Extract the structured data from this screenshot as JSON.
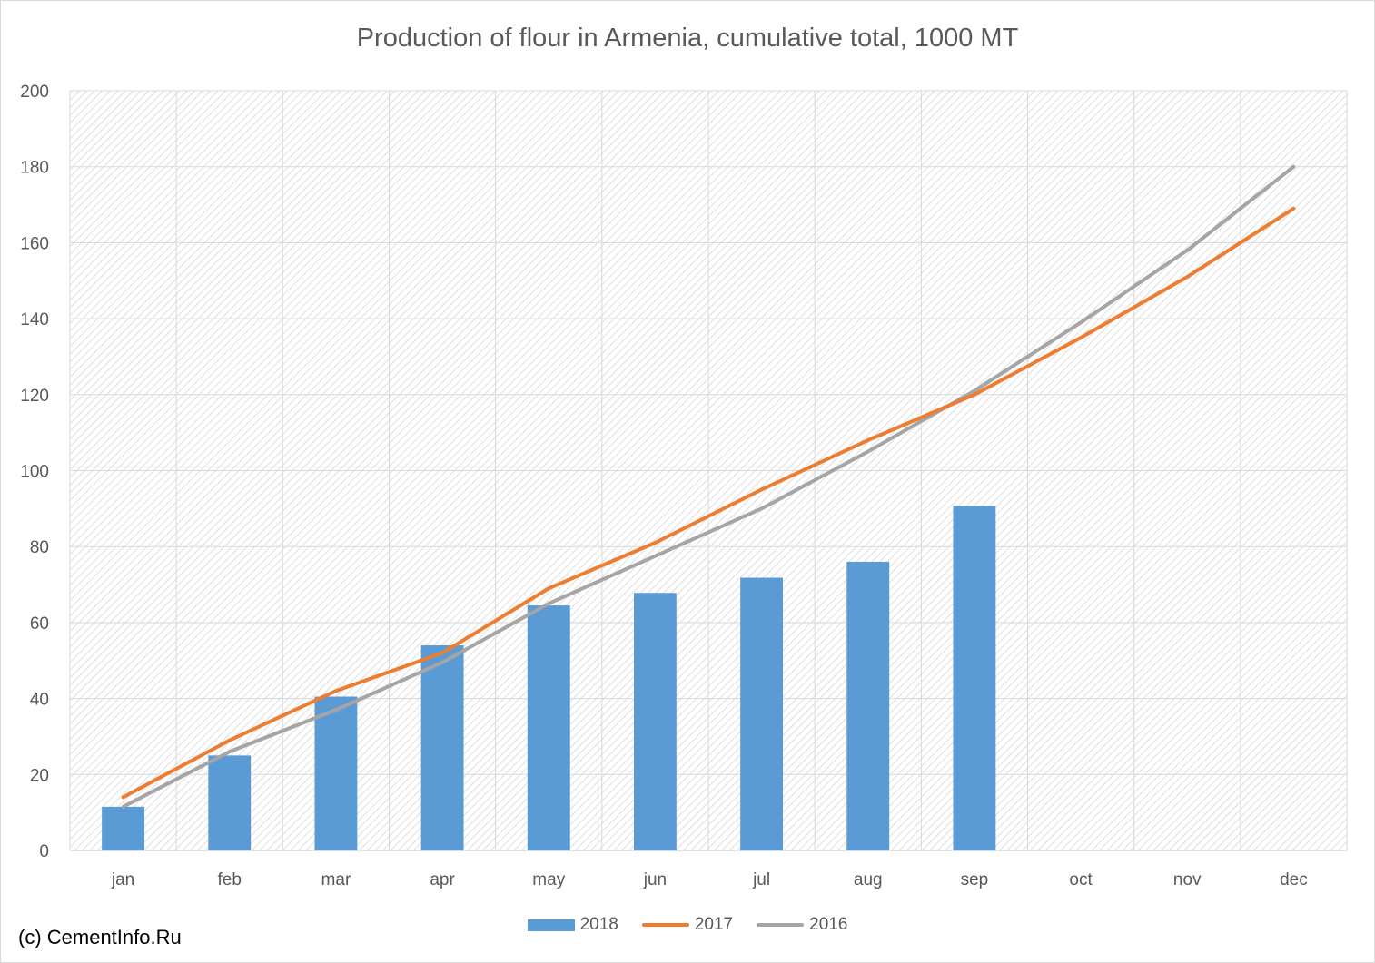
{
  "title": "Production of flour in Armenia, cumulative total, 1000 MT",
  "copyright": "(c) CementInfo.Ru",
  "chart_data": {
    "type": "bar",
    "title": "Production of flour in Armenia, cumulative total, 1000 MT",
    "xlabel": "",
    "ylabel": "",
    "ylim": [
      0,
      200
    ],
    "yticks": [
      0,
      20,
      40,
      60,
      80,
      100,
      120,
      140,
      160,
      180,
      200
    ],
    "grid": true,
    "legend_position": "bottom",
    "categories": [
      "jan",
      "feb",
      "mar",
      "apr",
      "may",
      "jun",
      "jul",
      "aug",
      "sep",
      "oct",
      "nov",
      "dec"
    ],
    "series": [
      {
        "name": "2018",
        "type": "bar",
        "color": "#5b9bd5",
        "values": [
          11.5,
          25,
          40.5,
          54,
          64.5,
          67.8,
          71.8,
          76,
          90.7,
          null,
          null,
          null
        ]
      },
      {
        "name": "2017",
        "type": "line",
        "color": "#ed7d31",
        "values": [
          14,
          29,
          42,
          52,
          69,
          81,
          95,
          108,
          120,
          135,
          151,
          169
        ]
      },
      {
        "name": "2016",
        "type": "line",
        "color": "#a5a5a5",
        "values": [
          11.5,
          26,
          37,
          49.5,
          65,
          77.5,
          90,
          105,
          121,
          139,
          158,
          180
        ]
      }
    ]
  }
}
